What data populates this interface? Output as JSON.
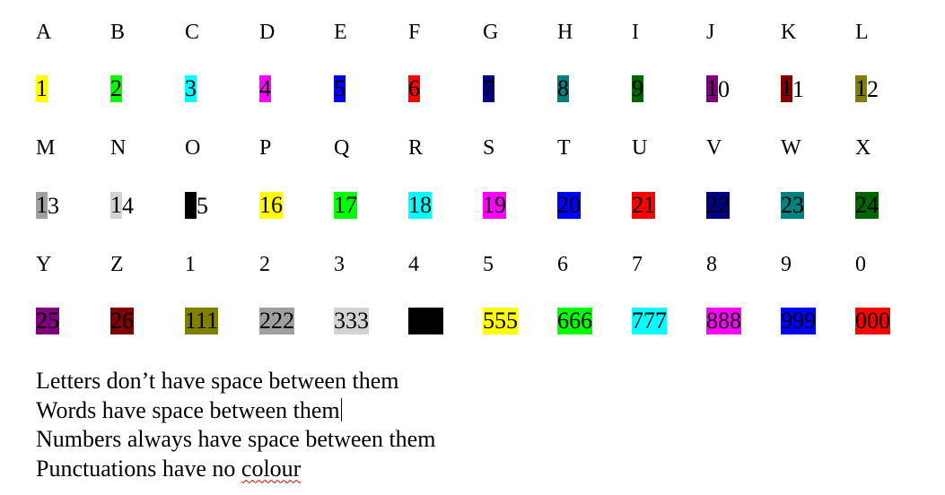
{
  "rows": [
    {
      "kind": "letters",
      "cells": [
        {
          "text": "A"
        },
        {
          "text": "B"
        },
        {
          "text": "C"
        },
        {
          "text": "D"
        },
        {
          "text": "E"
        },
        {
          "text": "F"
        },
        {
          "text": "G"
        },
        {
          "text": "H"
        },
        {
          "text": "I"
        },
        {
          "text": "J"
        },
        {
          "text": "K"
        },
        {
          "text": "L"
        }
      ]
    },
    {
      "kind": "codes",
      "cells": [
        {
          "parts": [
            {
              "text": "1",
              "bg": "#ffff00"
            }
          ]
        },
        {
          "parts": [
            {
              "text": "2",
              "bg": "#00ff00"
            }
          ]
        },
        {
          "parts": [
            {
              "text": "3",
              "bg": "#00ffff"
            }
          ]
        },
        {
          "parts": [
            {
              "text": "4",
              "bg": "#ff00ff"
            }
          ]
        },
        {
          "parts": [
            {
              "text": "5",
              "bg": "#0000ff"
            }
          ]
        },
        {
          "parts": [
            {
              "text": "6",
              "bg": "#ff0000"
            }
          ]
        },
        {
          "parts": [
            {
              "text": "7",
              "bg": "#000080"
            }
          ]
        },
        {
          "parts": [
            {
              "text": "8",
              "bg": "#008080"
            }
          ]
        },
        {
          "parts": [
            {
              "text": "9",
              "bg": "#006400"
            }
          ]
        },
        {
          "parts": [
            {
              "text": "1",
              "bg": "#800080"
            },
            {
              "text": "0"
            }
          ]
        },
        {
          "parts": [
            {
              "text": "1",
              "bg": "#800000"
            },
            {
              "text": "1"
            }
          ]
        },
        {
          "parts": [
            {
              "text": "1",
              "bg": "#808000"
            },
            {
              "text": "2"
            }
          ]
        }
      ]
    },
    {
      "kind": "letters",
      "cells": [
        {
          "text": "M"
        },
        {
          "text": "N"
        },
        {
          "text": "O"
        },
        {
          "text": "P"
        },
        {
          "text": "Q"
        },
        {
          "text": "R"
        },
        {
          "text": "S"
        },
        {
          "text": "T"
        },
        {
          "text": "U"
        },
        {
          "text": "V"
        },
        {
          "text": "W"
        },
        {
          "text": "X"
        }
      ]
    },
    {
      "kind": "codes",
      "cells": [
        {
          "parts": [
            {
              "text": "1",
              "bg": "#a0a0a0"
            },
            {
              "text": "3"
            }
          ]
        },
        {
          "parts": [
            {
              "text": "1",
              "bg": "#d3d3d3"
            },
            {
              "text": "4"
            }
          ]
        },
        {
          "parts": [
            {
              "text": "1",
              "bg": "#000000"
            },
            {
              "text": "5"
            }
          ]
        },
        {
          "parts": [
            {
              "text": "16",
              "bg": "#ffff00"
            }
          ]
        },
        {
          "parts": [
            {
              "text": "17",
              "bg": "#00ff00"
            }
          ]
        },
        {
          "parts": [
            {
              "text": "18",
              "bg": "#00ffff"
            }
          ]
        },
        {
          "parts": [
            {
              "text": "19",
              "bg": "#ff00ff"
            }
          ]
        },
        {
          "parts": [
            {
              "text": "20",
              "bg": "#0000ff"
            }
          ]
        },
        {
          "parts": [
            {
              "text": "21",
              "bg": "#ff0000"
            }
          ]
        },
        {
          "parts": [
            {
              "text": "22",
              "bg": "#000080"
            }
          ]
        },
        {
          "parts": [
            {
              "text": "23",
              "bg": "#008080"
            }
          ]
        },
        {
          "parts": [
            {
              "text": "24",
              "bg": "#006400"
            }
          ]
        }
      ]
    },
    {
      "kind": "letters",
      "cells": [
        {
          "text": "Y"
        },
        {
          "text": "Z"
        },
        {
          "text": "1"
        },
        {
          "text": "2"
        },
        {
          "text": "3"
        },
        {
          "text": "4"
        },
        {
          "text": "5"
        },
        {
          "text": "6"
        },
        {
          "text": "7"
        },
        {
          "text": "8"
        },
        {
          "text": "9"
        },
        {
          "text": "0"
        }
      ]
    },
    {
      "kind": "codes",
      "cells": [
        {
          "parts": [
            {
              "text": "25",
              "bg": "#800080"
            }
          ]
        },
        {
          "parts": [
            {
              "text": "26",
              "bg": "#800000"
            }
          ]
        },
        {
          "parts": [
            {
              "text": "111",
              "bg": "#808000"
            }
          ]
        },
        {
          "parts": [
            {
              "text": "222",
              "bg": "#a0a0a0"
            }
          ]
        },
        {
          "parts": [
            {
              "text": "333",
              "bg": "#d3d3d3"
            }
          ]
        },
        {
          "parts": [
            {
              "text": "444",
              "bg": "#000000"
            }
          ]
        },
        {
          "parts": [
            {
              "text": "555",
              "bg": "#ffff00"
            }
          ]
        },
        {
          "parts": [
            {
              "text": "666",
              "bg": "#00ff00"
            }
          ]
        },
        {
          "parts": [
            {
              "text": "777",
              "bg": "#00ffff"
            }
          ]
        },
        {
          "parts": [
            {
              "text": "888",
              "bg": "#ff00ff"
            }
          ]
        },
        {
          "parts": [
            {
              "text": "999",
              "bg": "#0000ff"
            }
          ]
        },
        {
          "parts": [
            {
              "text": "000",
              "bg": "#ff0000"
            }
          ]
        }
      ]
    }
  ],
  "notes": {
    "line1": "Letters don’t have space between them",
    "line2": "Words have space between them",
    "line3": "Numbers always have space between them",
    "line4_before": "Punctuations have no ",
    "line4_misspelled": "colour"
  }
}
